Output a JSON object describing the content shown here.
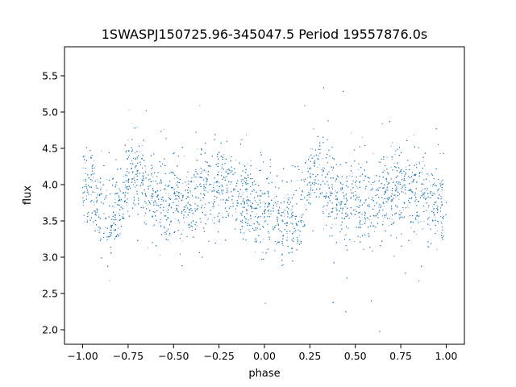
{
  "chart_data": {
    "type": "scatter",
    "title": "1SWASPJ150725.96-345047.5 Period 19557876.0s",
    "xlabel": "phase",
    "ylabel": "flux",
    "xlim": [
      -1.1,
      1.1
    ],
    "ylim": [
      1.8,
      5.9
    ],
    "xticks": [
      -1.0,
      -0.75,
      -0.5,
      -0.25,
      0.0,
      0.25,
      0.5,
      0.75,
      1.0
    ],
    "xtick_labels": [
      "−1.00",
      "−0.75",
      "−0.50",
      "−0.25",
      "0.00",
      "0.25",
      "0.50",
      "0.75",
      "1.00"
    ],
    "yticks": [
      2.0,
      2.5,
      3.0,
      3.5,
      4.0,
      4.5,
      5.0,
      5.5
    ],
    "ytick_labels": [
      "2.0",
      "2.5",
      "3.0",
      "3.5",
      "4.0",
      "4.5",
      "5.0",
      "5.5"
    ],
    "grid": false,
    "point_color": "#1f77b4",
    "series": [
      {
        "phase": [
          -1.0,
          -0.95,
          -0.9,
          -0.85,
          -0.8,
          -0.75,
          -0.7,
          -0.65,
          -0.6,
          -0.55,
          -0.5,
          -0.45,
          -0.4,
          -0.35,
          -0.3,
          -0.25,
          -0.2,
          -0.15,
          -0.1,
          -0.05,
          0.0,
          0.05,
          0.1,
          0.15,
          0.2,
          0.25,
          0.3,
          0.35,
          0.4,
          0.45,
          0.5,
          0.55,
          0.6,
          0.65,
          0.7,
          0.75,
          0.8,
          0.85,
          0.9,
          0.95,
          1.0
        ],
        "flux": [
          3.95,
          3.85,
          3.7,
          3.55,
          3.7,
          4.15,
          4.2,
          3.95,
          3.8,
          3.75,
          3.9,
          3.75,
          3.8,
          3.9,
          3.85,
          3.95,
          3.9,
          3.8,
          3.8,
          3.65,
          3.7,
          3.6,
          3.55,
          3.55,
          3.5,
          4.1,
          4.2,
          3.95,
          3.8,
          3.75,
          3.9,
          3.75,
          3.8,
          3.9,
          3.85,
          3.95,
          3.9,
          3.8,
          3.8,
          3.7,
          3.85
        ]
      }
    ]
  }
}
